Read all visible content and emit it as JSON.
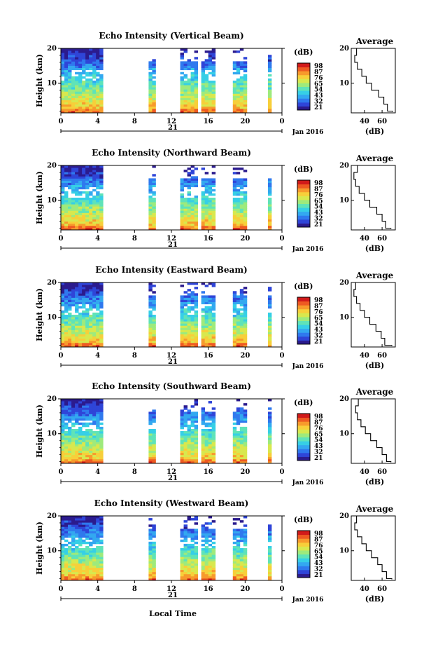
{
  "date_label": "Jan 2016",
  "day_label": "21",
  "x_axis_title": "Local Time",
  "colorbar_unit": "(dB)",
  "average_title": "Average",
  "average_xlabel": "(dB)",
  "colormap": [
    "#2b1b8e",
    "#2f45d8",
    "#2f79ee",
    "#33a8f0",
    "#36cfe6",
    "#5fe3b8",
    "#9eea7c",
    "#d8e84e",
    "#f7cf3a",
    "#f79a2c",
    "#ee5a22",
    "#d11a1a"
  ],
  "chart_data": [
    {
      "type": "heatmap",
      "title": "Echo Intensity (Vertical Beam)",
      "ylabel": "Height (km)",
      "xlabel": "Local Time",
      "xlim": [
        0,
        24
      ],
      "x_ticks": [
        "0",
        "4",
        "8",
        "12",
        "16",
        "20",
        "0"
      ],
      "ylim": [
        1.5,
        20
      ],
      "y_ticks": [
        10,
        20
      ],
      "colorbar": {
        "ticks": [
          "98",
          "87",
          "76",
          "65",
          "54",
          "43",
          "32",
          "21"
        ],
        "range": [
          21,
          98
        ]
      },
      "data_segments_hours": [
        [
          0,
          4.4
        ],
        [
          9.6,
          10.2
        ],
        [
          12.8,
          15.0
        ],
        [
          15.4,
          16.9
        ],
        [
          18.8,
          20.2
        ],
        [
          21.2,
          21.5
        ],
        [
          22.6,
          23.0
        ]
      ],
      "average": {
        "title": "Average",
        "xlabel": "(dB)",
        "x_ticks": [
          40,
          60
        ],
        "xlim": [
          25,
          75
        ],
        "y_ticks": [
          10,
          20
        ],
        "heights_km": [
          2,
          4,
          6,
          8,
          10,
          12,
          14,
          16,
          18,
          20
        ],
        "values_db": [
          72,
          66,
          62,
          56,
          48,
          42,
          37,
          32,
          29,
          31
        ]
      }
    },
    {
      "type": "heatmap",
      "title": "Echo Intensity (Northward Beam)",
      "ylabel": "Height (km)",
      "xlabel": "Local Time",
      "xlim": [
        0,
        24
      ],
      "x_ticks": [
        "0",
        "4",
        "8",
        "12",
        "16",
        "20",
        "0"
      ],
      "ylim": [
        1.5,
        20
      ],
      "y_ticks": [
        10,
        20
      ],
      "colorbar": {
        "ticks": [
          "98",
          "87",
          "76",
          "65",
          "54",
          "43",
          "32",
          "21"
        ],
        "range": [
          21,
          98
        ]
      },
      "data_segments_hours": [
        [
          0,
          4.4
        ],
        [
          9.6,
          10.2
        ],
        [
          12.8,
          15.0
        ],
        [
          15.4,
          16.9
        ],
        [
          18.8,
          20.2
        ],
        [
          21.2,
          21.5
        ],
        [
          22.6,
          23.0
        ]
      ],
      "average": {
        "title": "Average",
        "xlabel": "(dB)",
        "x_ticks": [
          40,
          60
        ],
        "xlim": [
          25,
          75
        ],
        "y_ticks": [
          10,
          20
        ],
        "heights_km": [
          2,
          4,
          6,
          8,
          10,
          12,
          14,
          16,
          18,
          20
        ],
        "values_db": [
          70,
          64,
          60,
          54,
          46,
          40,
          34,
          30,
          28,
          32
        ]
      }
    },
    {
      "type": "heatmap",
      "title": "Echo Intensity (Eastward Beam)",
      "ylabel": "Height (km)",
      "xlabel": "Local Time",
      "xlim": [
        0,
        24
      ],
      "x_ticks": [
        "0",
        "4",
        "8",
        "12",
        "16",
        "20",
        "0"
      ],
      "ylim": [
        1.5,
        20
      ],
      "y_ticks": [
        10,
        20
      ],
      "colorbar": {
        "ticks": [
          "98",
          "87",
          "76",
          "65",
          "54",
          "43",
          "32",
          "21"
        ],
        "range": [
          21,
          98
        ]
      },
      "data_segments_hours": [
        [
          0,
          4.4
        ],
        [
          9.6,
          10.2
        ],
        [
          12.8,
          15.0
        ],
        [
          15.4,
          16.9
        ],
        [
          18.8,
          20.2
        ],
        [
          21.2,
          21.5
        ],
        [
          22.6,
          23.0
        ]
      ],
      "average": {
        "title": "Average",
        "xlabel": "(dB)",
        "x_ticks": [
          40,
          60
        ],
        "xlim": [
          25,
          75
        ],
        "y_ticks": [
          10,
          20
        ],
        "heights_km": [
          2,
          4,
          6,
          8,
          10,
          12,
          14,
          16,
          18,
          20
        ],
        "values_db": [
          71,
          63,
          59,
          53,
          46,
          40,
          35,
          31,
          28,
          30
        ]
      }
    },
    {
      "type": "heatmap",
      "title": "Echo Intensity (Southward Beam)",
      "ylabel": "Height (km)",
      "xlabel": "Local Time",
      "xlim": [
        0,
        24
      ],
      "x_ticks": [
        "0",
        "4",
        "8",
        "12",
        "16",
        "20",
        "0"
      ],
      "ylim": [
        1.5,
        20
      ],
      "y_ticks": [
        10,
        20
      ],
      "colorbar": {
        "ticks": [
          "98",
          "87",
          "76",
          "65",
          "54",
          "43",
          "32",
          "21"
        ],
        "range": [
          21,
          98
        ]
      },
      "data_segments_hours": [
        [
          0,
          4.4
        ],
        [
          9.6,
          10.2
        ],
        [
          12.8,
          15.0
        ],
        [
          15.4,
          16.9
        ],
        [
          18.8,
          20.2
        ],
        [
          21.2,
          21.5
        ],
        [
          22.6,
          23.0
        ]
      ],
      "average": {
        "title": "Average",
        "xlabel": "(dB)",
        "x_ticks": [
          40,
          60
        ],
        "xlim": [
          25,
          75
        ],
        "y_ticks": [
          10,
          20
        ],
        "heights_km": [
          2,
          4,
          6,
          8,
          10,
          12,
          14,
          16,
          18,
          20
        ],
        "values_db": [
          70,
          65,
          60,
          54,
          47,
          41,
          36,
          32,
          30,
          33
        ]
      }
    },
    {
      "type": "heatmap",
      "title": "Echo Intensity (Westward Beam)",
      "ylabel": "Height (km)",
      "xlabel": "Local Time",
      "xlim": [
        0,
        24
      ],
      "x_ticks": [
        "0",
        "4",
        "8",
        "12",
        "16",
        "20",
        "0"
      ],
      "ylim": [
        1.5,
        20
      ],
      "y_ticks": [
        10,
        20
      ],
      "colorbar": {
        "ticks": [
          "98",
          "87",
          "76",
          "65",
          "54",
          "43",
          "32",
          "21"
        ],
        "range": [
          21,
          98
        ]
      },
      "data_segments_hours": [
        [
          0,
          4.4
        ],
        [
          9.6,
          10.2
        ],
        [
          12.8,
          15.0
        ],
        [
          15.4,
          16.9
        ],
        [
          18.8,
          20.2
        ],
        [
          21.2,
          21.5
        ],
        [
          22.6,
          23.0
        ]
      ],
      "average": {
        "title": "Average",
        "xlabel": "(dB)",
        "x_ticks": [
          40,
          60
        ],
        "xlim": [
          25,
          75
        ],
        "y_ticks": [
          10,
          20
        ],
        "heights_km": [
          2,
          4,
          6,
          8,
          10,
          12,
          14,
          16,
          18,
          20
        ],
        "values_db": [
          71,
          65,
          60,
          55,
          48,
          42,
          37,
          32,
          29,
          31
        ]
      }
    }
  ]
}
